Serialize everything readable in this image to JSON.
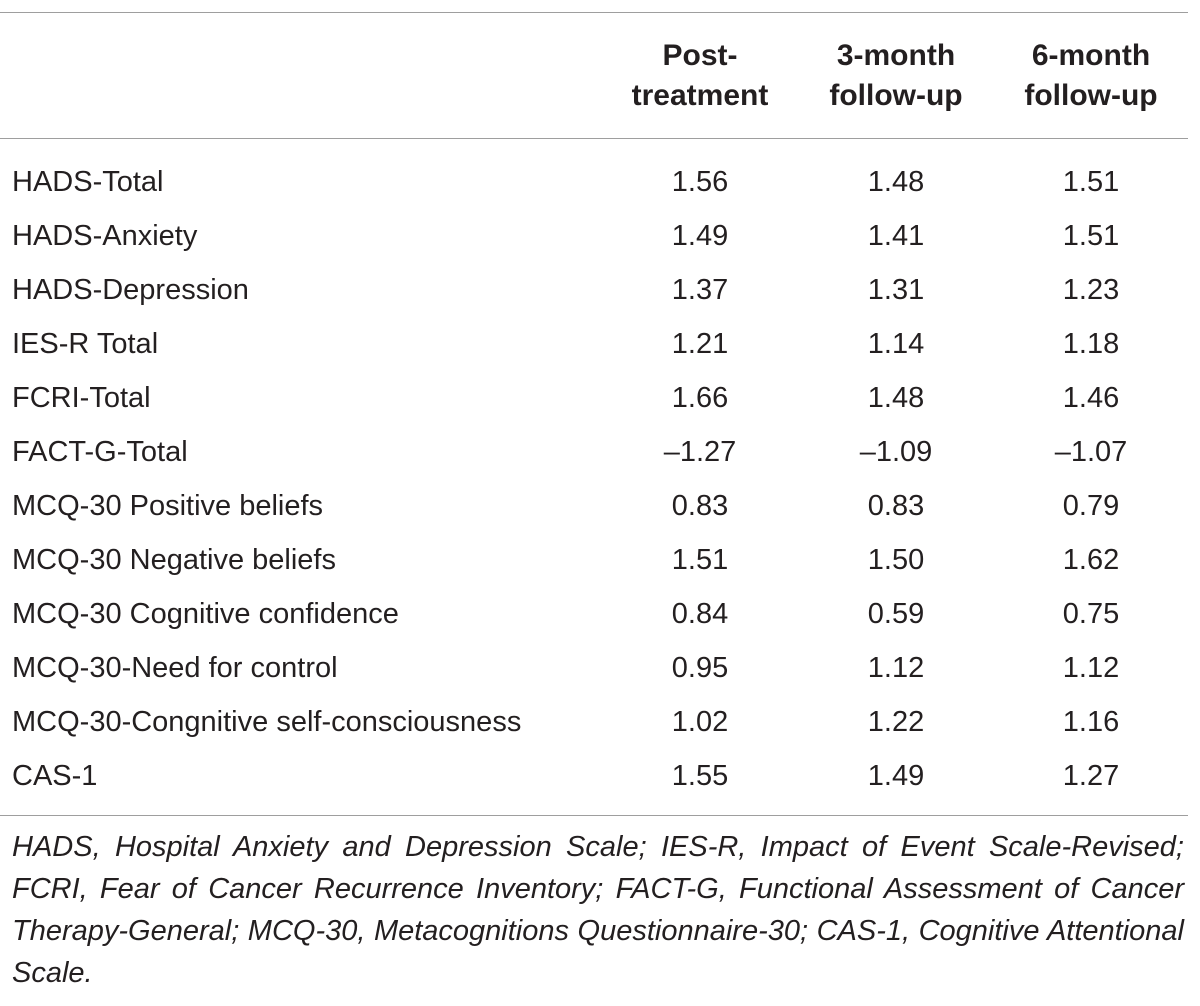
{
  "table": {
    "headers": [
      {
        "line1": "",
        "line2": ""
      },
      {
        "line1": "Post-",
        "line2": "treatment"
      },
      {
        "line1": "3-month",
        "line2": "follow-up"
      },
      {
        "line1": "6-month",
        "line2": "follow-up"
      }
    ],
    "rows": [
      {
        "label": "HADS-Total",
        "post": "1.56",
        "m3": "1.48",
        "m6": "1.51"
      },
      {
        "label": "HADS-Anxiety",
        "post": "1.49",
        "m3": "1.41",
        "m6": "1.51"
      },
      {
        "label": "HADS-Depression",
        "post": "1.37",
        "m3": "1.31",
        "m6": "1.23"
      },
      {
        "label": "IES-R Total",
        "post": "1.21",
        "m3": "1.14",
        "m6": "1.18"
      },
      {
        "label": "FCRI-Total",
        "post": "1.66",
        "m3": "1.48",
        "m6": "1.46"
      },
      {
        "label": "FACT-G-Total",
        "post": "–1.27",
        "m3": "–1.09",
        "m6": "–1.07"
      },
      {
        "label": "MCQ-30 Positive beliefs",
        "post": "0.83",
        "m3": "0.83",
        "m6": "0.79"
      },
      {
        "label": "MCQ-30 Negative beliefs",
        "post": "1.51",
        "m3": "1.50",
        "m6": "1.62"
      },
      {
        "label": "MCQ-30 Cognitive confidence",
        "post": "0.84",
        "m3": "0.59",
        "m6": "0.75"
      },
      {
        "label": "MCQ-30-Need for control",
        "post": "0.95",
        "m3": "1.12",
        "m6": "1.12"
      },
      {
        "label": "MCQ-30-Congnitive self-consciousness",
        "post": "1.02",
        "m3": "1.22",
        "m6": "1.16"
      },
      {
        "label": "CAS-1",
        "post": "1.55",
        "m3": "1.49",
        "m6": "1.27"
      }
    ]
  },
  "footnote": "HADS, Hospital Anxiety and Depression Scale; IES-R, Impact of Event Scale-Revised; FCRI, Fear of Cancer Recurrence Inventory; FACT-G, Functional Assessment of Cancer Therapy-General; MCQ-30, Metacognitions Questionnaire-30; CAS-1, Cognitive Attentional Scale."
}
